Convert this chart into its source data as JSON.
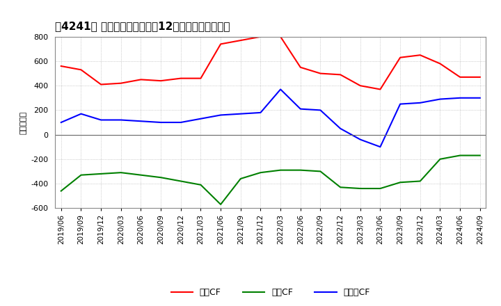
{
  "title": "［4241］ キャッシュフローの12か月移動合計の推移",
  "ylabel": "（百万円）",
  "ylim": [
    -600,
    800
  ],
  "yticks": [
    -600,
    -400,
    -200,
    0,
    200,
    400,
    600,
    800
  ],
  "dates": [
    "2019/06",
    "2019/09",
    "2019/12",
    "2020/03",
    "2020/06",
    "2020/09",
    "2020/12",
    "2021/03",
    "2021/06",
    "2021/09",
    "2021/12",
    "2022/03",
    "2022/06",
    "2022/09",
    "2022/12",
    "2023/03",
    "2023/06",
    "2023/09",
    "2023/12",
    "2024/03",
    "2024/06",
    "2024/09"
  ],
  "operating_cf": [
    560,
    530,
    410,
    420,
    450,
    440,
    460,
    460,
    740,
    770,
    800,
    800,
    550,
    500,
    490,
    400,
    370,
    630,
    650,
    580,
    470,
    470
  ],
  "investing_cf": [
    -460,
    -330,
    -320,
    -310,
    -330,
    -350,
    -380,
    -410,
    -570,
    -360,
    -310,
    -290,
    -290,
    -300,
    -430,
    -440,
    -440,
    -390,
    -380,
    -200,
    -170,
    -170
  ],
  "free_cf": [
    100,
    170,
    120,
    120,
    110,
    100,
    100,
    130,
    160,
    170,
    180,
    370,
    210,
    200,
    50,
    -40,
    -100,
    250,
    260,
    290,
    300,
    300
  ],
  "color_operating": "#ff0000",
  "color_investing": "#008000",
  "color_free": "#0000ff",
  "legend_labels": [
    "営業CF",
    "投資CF",
    "フリーCF"
  ],
  "background_color": "#ffffff",
  "grid_color": "#aaaaaa"
}
